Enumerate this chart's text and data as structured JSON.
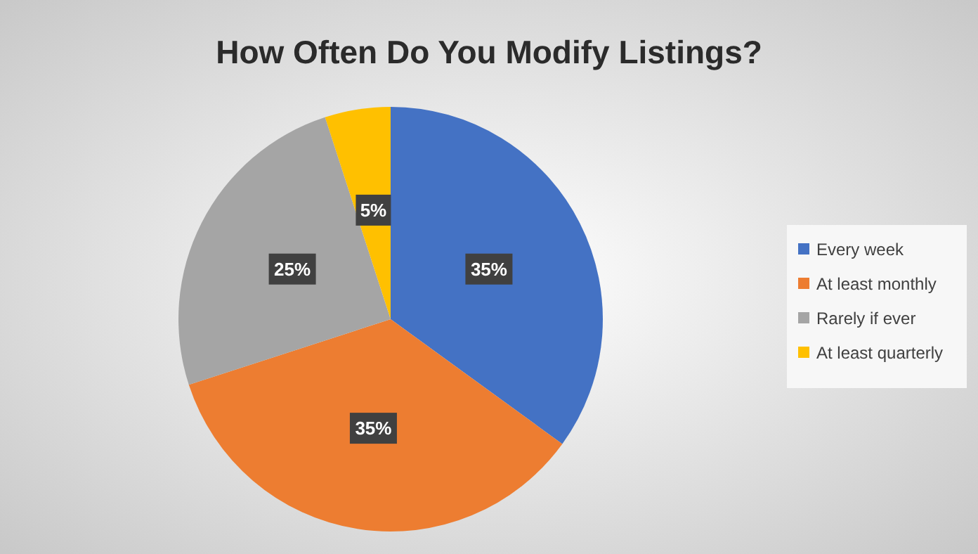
{
  "chart_data": {
    "type": "pie",
    "title": "How Often Do You Modify Listings?",
    "categories": [
      "Every week",
      "At least monthly",
      "Rarely if ever",
      "At least quarterly"
    ],
    "values": [
      35,
      35,
      25,
      5
    ],
    "colors": [
      "#4472c4",
      "#ed7d31",
      "#a5a5a5",
      "#ffc000"
    ],
    "value_labels": [
      "35%",
      "35%",
      "25%",
      "5%"
    ],
    "legend": "right"
  }
}
